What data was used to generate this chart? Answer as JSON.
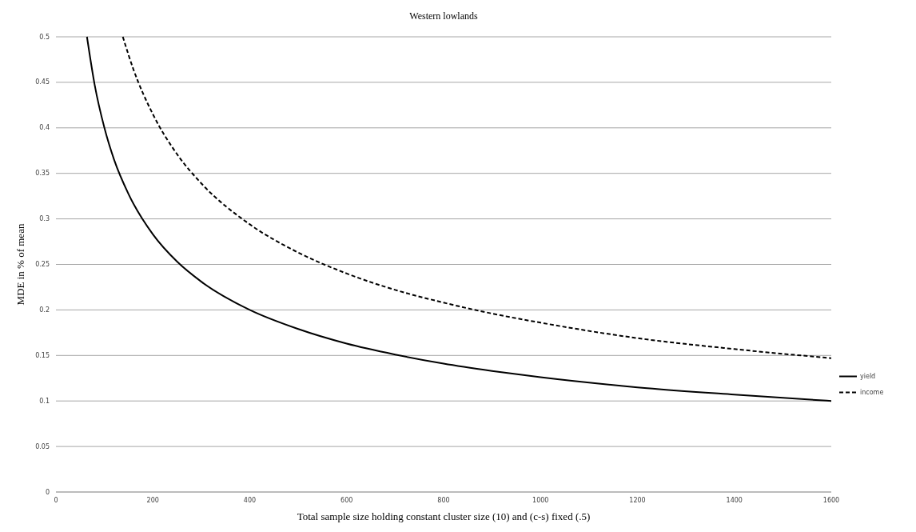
{
  "chart_data": {
    "type": "line",
    "title": "Western lowlands",
    "xlabel": "Total sample size holding constant cluster size (10) and (c-s) fixed (.5)",
    "ylabel": "MDE in % of mean",
    "xlim": [
      0,
      1600
    ],
    "xticks": [
      0,
      200,
      400,
      600,
      800,
      1000,
      1200,
      1400,
      1600
    ],
    "ylim": [
      0,
      0.5
    ],
    "yticks": [
      0,
      0.05,
      0.1,
      0.15,
      0.2,
      0.25,
      0.3,
      0.35,
      0.4,
      0.45,
      0.5
    ],
    "grid": "y",
    "legend": "right",
    "marker": "none",
    "series": [
      {
        "name": "yield",
        "color": "#000000",
        "line_style": "solid",
        "x": [
          64,
          80,
          100,
          120,
          150,
          200,
          250,
          300,
          400,
          500,
          600,
          700,
          800,
          900,
          1000,
          1200,
          1400,
          1600
        ],
        "values": [
          0.5,
          0.447,
          0.4,
          0.365,
          0.327,
          0.283,
          0.253,
          0.231,
          0.2,
          0.179,
          0.163,
          0.151,
          0.141,
          0.133,
          0.126,
          0.115,
          0.107,
          0.1
        ]
      },
      {
        "name": "income",
        "color": "#000000",
        "line_style": "dashed",
        "x": [
          138,
          160,
          200,
          250,
          300,
          400,
          500,
          600,
          700,
          800,
          900,
          1000,
          1200,
          1400,
          1600
        ],
        "values": [
          0.5,
          0.464,
          0.415,
          0.371,
          0.339,
          0.294,
          0.263,
          0.24,
          0.222,
          0.208,
          0.196,
          0.186,
          0.169,
          0.157,
          0.147
        ]
      }
    ]
  }
}
